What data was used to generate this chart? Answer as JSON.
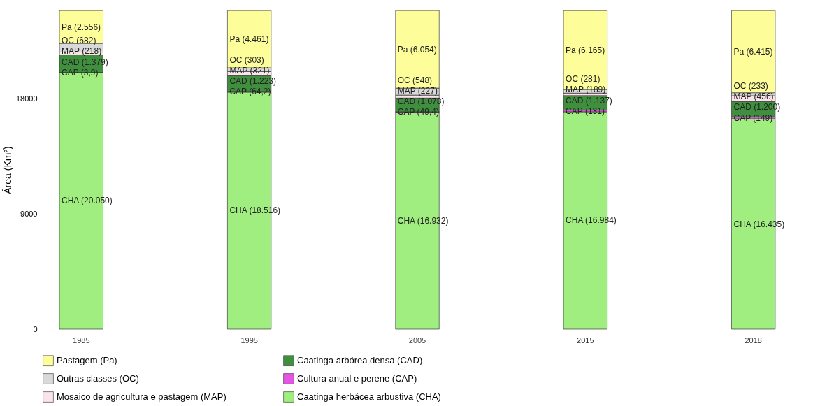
{
  "chart_data": {
    "type": "bar",
    "stacked": true,
    "ylabel": "Área  (Km²)",
    "categories": [
      "1985",
      "1995",
      "2005",
      "2015",
      "2018"
    ],
    "ylim": [
      0,
      24900
    ],
    "yticks": [
      0,
      9000,
      18000
    ],
    "legend": "bottom left",
    "series": [
      {
        "name": "Caatinga herbácea arbustiva (CHA)",
        "color": "#9fee7f",
        "values": [
          20050,
          18516,
          16932,
          16984,
          16435
        ],
        "value_labels": [
          "CHA (20.050)",
          "CHA (18.516)",
          "CHA (16.932)",
          "CHA (16.984)",
          "CHA (16.435)"
        ]
      },
      {
        "name": "Cultura anual e perene (CAP)",
        "color": "#e455e4",
        "values": [
          3.9,
          64.2,
          49.4,
          131,
          149
        ],
        "value_labels": [
          "CAP (3,9)",
          "CAP (64,2)",
          "CAP (49,4)",
          "CAP (131)",
          "CAP (149)"
        ]
      },
      {
        "name": "Caatinga arbórea densa (CAD)",
        "color": "#3f8f3f",
        "values": [
          1379,
          1223,
          1078,
          1137,
          1200
        ],
        "value_labels": [
          "CAD (1.379)",
          "CAD (1.223)",
          "CAD (1.078)",
          "CAD (1.137)",
          "CAD (1.200)"
        ]
      },
      {
        "name": "Mosaico de agricultura e pastagem (MAP)",
        "color": "#fbe3ea",
        "values": [
          218,
          321,
          227,
          189,
          456
        ],
        "value_labels": [
          "MAP (218)",
          "MAP (321)",
          "MAP (227)",
          "MAP (189)",
          "MAP (456)"
        ]
      },
      {
        "name": "Outras classes (OC)",
        "color": "#d9d9d9",
        "values": [
          682,
          303,
          548,
          281,
          233
        ],
        "value_labels": [
          "OC (682)",
          "OC (303)",
          "OC (548)",
          "OC (281)",
          "OC (233)"
        ]
      },
      {
        "name": "Pastagem (Pa)",
        "color": "#fdfd9a",
        "values": [
          2556,
          4461,
          6054,
          6165,
          6415
        ],
        "value_labels": [
          "Pa (2.556)",
          "Pa (4.461)",
          "Pa (6.054)",
          "Pa (6.165)",
          "Pa (6.415)"
        ]
      }
    ]
  }
}
